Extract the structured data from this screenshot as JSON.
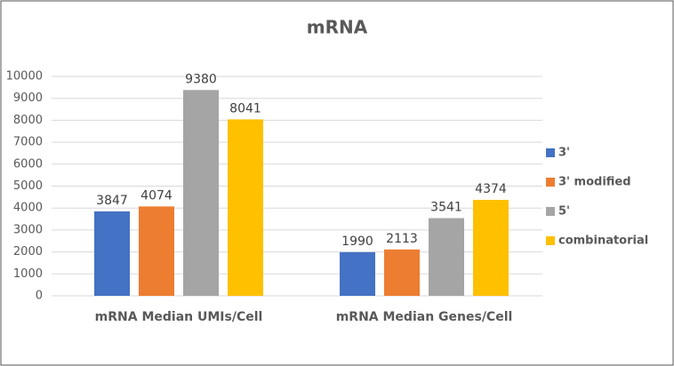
{
  "chart_data": {
    "type": "bar",
    "title": "mRNA",
    "categories": [
      "mRNA Median UMIs/Cell",
      "mRNA Median Genes/Cell"
    ],
    "series": [
      {
        "name": "3'",
        "color": "#4472c4",
        "values": [
          3847,
          1990
        ]
      },
      {
        "name": "3' modified",
        "color": "#ed7d31",
        "values": [
          4074,
          2113
        ]
      },
      {
        "name": "5'",
        "color": "#a5a5a5",
        "values": [
          9380,
          3541
        ]
      },
      {
        "name": "combinatorial",
        "color": "#ffc000",
        "values": [
          8041,
          4374
        ]
      }
    ],
    "ylim": [
      0,
      10000
    ],
    "yticks": [
      0,
      1000,
      2000,
      3000,
      4000,
      5000,
      6000,
      7000,
      8000,
      9000,
      10000
    ],
    "grid": true,
    "legend": "right"
  }
}
